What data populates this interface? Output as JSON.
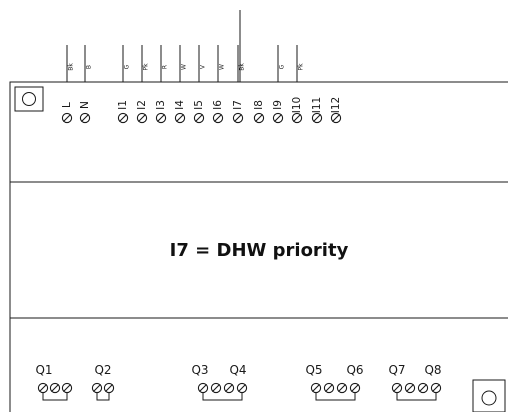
{
  "inputs": [
    {
      "label": "L",
      "wire": "Bk"
    },
    {
      "label": "N",
      "wire": "B"
    },
    {
      "label": "I1",
      "wire": "G"
    },
    {
      "label": "I2",
      "wire": "Pk"
    },
    {
      "label": "I3",
      "wire": "R"
    },
    {
      "label": "I4",
      "wire": "W"
    },
    {
      "label": "I5",
      "wire": "V"
    },
    {
      "label": "I6",
      "wire": "W"
    },
    {
      "label": "I7",
      "wire": "Bk"
    },
    {
      "label": "I8",
      "wire": ""
    },
    {
      "label": "I9",
      "wire": "G"
    },
    {
      "label": "I10",
      "wire": "Pk"
    },
    {
      "label": "I11",
      "wire": ""
    },
    {
      "label": "I12",
      "wire": ""
    }
  ],
  "outputs": [
    "Q1",
    "Q2",
    "Q3",
    "Q4",
    "Q5",
    "Q6",
    "Q7",
    "Q8"
  ],
  "note": "I7 = DHW priority"
}
